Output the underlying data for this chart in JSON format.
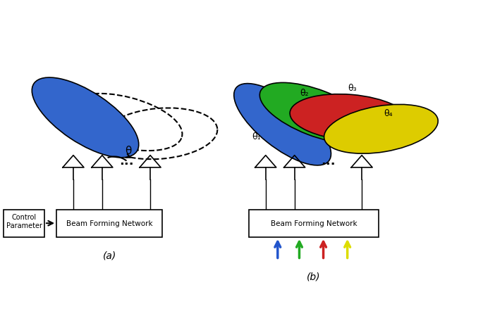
{
  "title": "",
  "fig_width": 6.85,
  "fig_height": 4.6,
  "dpi": 100,
  "background_color": "#ffffff",
  "label_a": "(a)",
  "label_b": "(b)",
  "beam_colors": [
    "#2255cc",
    "#22aa22",
    "#cc2222",
    "#dddd00"
  ],
  "arrow_colors": [
    "#2255cc",
    "#22aa22",
    "#cc2222",
    "#dddd00"
  ],
  "theta_labels": [
    "θ₁",
    "θ₂",
    "θ₃",
    "θ₄"
  ],
  "theta_single": "θ"
}
